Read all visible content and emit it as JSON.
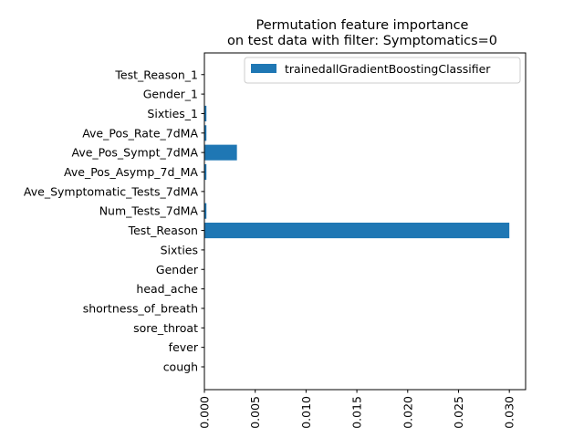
{
  "chart_data": {
    "type": "bar",
    "orientation": "horizontal",
    "title": [
      "Permutation feature importance",
      "on test data with filter: Symptomatics=0"
    ],
    "categories": [
      "cough",
      "fever",
      "sore_throat",
      "shortness_of_breath",
      "head_ache",
      "Gender",
      "Sixties",
      "Test_Reason",
      "Num_Tests_7dMA",
      "Ave_Symptomatic_Tests_7dMA",
      "Ave_Pos_Asymp_7d_MA",
      "Ave_Pos_Sympt_7dMA",
      "Ave_Pos_Rate_7dMA",
      "Sixties_1",
      "Gender_1",
      "Test_Reason_1"
    ],
    "series": [
      {
        "name": "trainedallGradientBoostingClassifier",
        "color": "#1f77b4",
        "values": [
          0.0,
          0.0,
          0.0,
          0.0,
          0.0,
          0.0,
          0.0,
          0.03,
          0.0002,
          0.0,
          0.0002,
          0.0032,
          0.0002,
          0.0002,
          0.0,
          0.0
        ]
      }
    ],
    "xlim": [
      0.0,
      0.0316
    ],
    "xticks": [
      0.0,
      0.005,
      0.01,
      0.015,
      0.02,
      0.025,
      0.03
    ],
    "xtick_labels": [
      "0.000",
      "0.005",
      "0.010",
      "0.015",
      "0.020",
      "0.025",
      "0.030"
    ],
    "xtick_rotation": "vertical",
    "grid": false,
    "legend_position": "top-right"
  }
}
